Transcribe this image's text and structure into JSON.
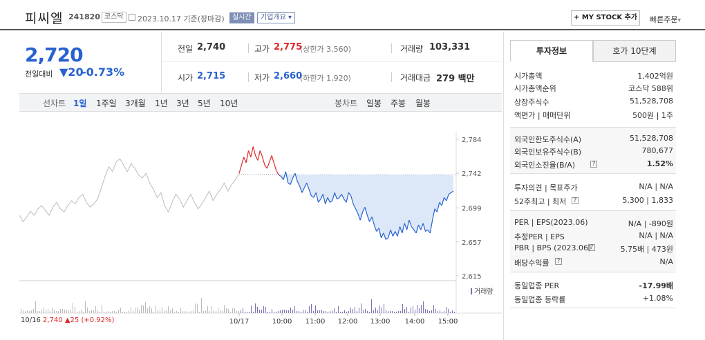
{
  "header": {
    "name": "피씨엘",
    "code": "241820",
    "market": "코스닥",
    "date": "2023.10.17 기준(장마감)",
    "live": "실시간",
    "corp_info": "기업개요",
    "mystock": "+ MY STOCK 추가",
    "quick_order": "빠른주문"
  },
  "price": {
    "current": "2,720",
    "change_label": "전일대비",
    "change": "▼20",
    "change_pct": "-0.73%"
  },
  "quotes": {
    "prev_label": "전일",
    "prev": "2,740",
    "high_label": "고가",
    "high": "2,775",
    "upper_limit": "(상한가 3,560)",
    "volume_label": "거래량",
    "volume": "103,331",
    "open_label": "시가",
    "open": "2,715",
    "low_label": "저가",
    "low": "2,660",
    "lower_limit": "(하한가 1,920)",
    "amount_label": "거래대금",
    "amount": "279 백만"
  },
  "chart_tabs": {
    "line_label": "선차트",
    "ranges": [
      "1일",
      "1주일",
      "3개월",
      "1년",
      "3년",
      "5년",
      "10년"
    ],
    "active": "1일",
    "candle_label": "봉차트",
    "candles": [
      "일봉",
      "주봉",
      "월봉"
    ]
  },
  "chart_data": {
    "type": "line",
    "title": "",
    "y_ticks": [
      "2,784",
      "2,742",
      "2,699",
      "2,657",
      "2,615"
    ],
    "ylim": [
      2615,
      2784
    ],
    "base_price": 2740,
    "volume_label": "거래량",
    "prev_day": {
      "date": "10/16",
      "close": "2,740",
      "change": "▲25",
      "change_pct": "(+0.92%)"
    },
    "x_ticks": [
      "10/17",
      "10:00",
      "11:00",
      "12:00",
      "13:00",
      "14:00",
      "15:00"
    ],
    "prev_series": [
      2690,
      2682,
      2688,
      2695,
      2690,
      2698,
      2702,
      2696,
      2690,
      2700,
      2706,
      2698,
      2694,
      2702,
      2708,
      2704,
      2712,
      2716,
      2706,
      2700,
      2704,
      2710,
      2724,
      2738,
      2750,
      2744,
      2756,
      2760,
      2752,
      2744,
      2754,
      2748,
      2740,
      2736,
      2742,
      2730,
      2722,
      2712,
      2718,
      2702,
      2694,
      2706,
      2716,
      2710,
      2700,
      2708,
      2716,
      2706,
      2698,
      2704,
      2712,
      2720,
      2708,
      2716,
      2722,
      2730,
      2720,
      2728,
      2734,
      2742
    ],
    "today_series": [
      2742,
      2752,
      2762,
      2755,
      2770,
      2762,
      2775,
      2764,
      2758,
      2770,
      2762,
      2752,
      2748,
      2756,
      2764,
      2754,
      2745,
      2740,
      2738,
      2734,
      2744,
      2730,
      2728,
      2736,
      2742,
      2732,
      2726,
      2718,
      2724,
      2730,
      2722,
      2714,
      2712,
      2718,
      2706,
      2710,
      2716,
      2704,
      2712,
      2706,
      2708,
      2718,
      2710,
      2712,
      2716,
      2710,
      2706,
      2718,
      2714,
      2704,
      2698,
      2692,
      2684,
      2694,
      2700,
      2690,
      2682,
      2688,
      2678,
      2670,
      2674,
      2662,
      2668,
      2660,
      2662,
      2672,
      2664,
      2670,
      2664,
      2676,
      2668,
      2680,
      2672,
      2684,
      2676,
      2672,
      2668,
      2678,
      2672,
      2680,
      2670,
      2672,
      2668,
      2684,
      2698,
      2694,
      2706,
      2702,
      2712,
      2708,
      2716,
      2718,
      2720
    ]
  },
  "side": {
    "tab_info": "투자정보",
    "tab_hoga": "호가 10단계",
    "g1": [
      {
        "k": "시가총액",
        "v": "1,402억원"
      },
      {
        "k": "시가총액순위",
        "v": "코스닥 588위"
      },
      {
        "k": "상장주식수",
        "v": "51,528,708"
      },
      {
        "k": "액면가 | 매매단위",
        "v": "500원 | 1주"
      }
    ],
    "g2": [
      {
        "k": "외국인한도주식수(A)",
        "v": "51,528,708"
      },
      {
        "k": "외국인보유주식수(B)",
        "v": "780,677"
      },
      {
        "k": "외국인소진율(B/A)",
        "v": "1.52%"
      }
    ],
    "g3": [
      {
        "k": "투자의견 | 목표주가",
        "v": "N/A | N/A"
      },
      {
        "k": "52주최고 | 최저",
        "v": "5,300 | 1,833"
      }
    ],
    "g4": [
      {
        "k": "PER | EPS(2023.06)",
        "v": "N/A | -890원"
      },
      {
        "k": "추정PER | EPS",
        "v": "N/A | N/A"
      },
      {
        "k": "PBR | BPS (2023.06)",
        "v": "5.75배 | 473원"
      },
      {
        "k": "배당수익률",
        "v": "N/A"
      }
    ],
    "g5": [
      {
        "k": "동일업종 PER",
        "v": "-17.99배"
      },
      {
        "k": "동일업종 등락률",
        "v": "+1.08%"
      }
    ]
  },
  "colors": {
    "up": "#e0262a",
    "down": "#2762cf",
    "prev_line": "#bbbbbb",
    "fill": "#dce8f8"
  }
}
